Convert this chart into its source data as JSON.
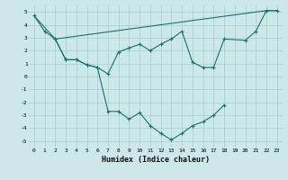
{
  "xlabel": "Humidex (Indice chaleur)",
  "bg_color": "#cce8e8",
  "grid_color": "#aacccc",
  "line_color": "#1a7070",
  "xlim": [
    -0.5,
    23.5
  ],
  "ylim": [
    -5.5,
    5.5
  ],
  "xticks": [
    0,
    1,
    2,
    3,
    4,
    5,
    6,
    7,
    8,
    9,
    10,
    11,
    12,
    13,
    14,
    15,
    16,
    17,
    18,
    19,
    20,
    21,
    22,
    23
  ],
  "yticks": [
    -5,
    -4,
    -3,
    -2,
    -1,
    0,
    1,
    2,
    3,
    4,
    5
  ],
  "line1_x": [
    0,
    1,
    2,
    3,
    4,
    5,
    6,
    7,
    8,
    9,
    10,
    11,
    12,
    13,
    14,
    15,
    16,
    17,
    18
  ],
  "line1_y": [
    4.7,
    3.5,
    2.9,
    1.3,
    1.3,
    0.9,
    0.7,
    -2.7,
    -2.7,
    -3.3,
    -2.8,
    -3.8,
    -4.4,
    -4.9,
    -4.4,
    -3.8,
    -3.5,
    -3.0,
    -2.2
  ],
  "line2_x": [
    0,
    2,
    22,
    23
  ],
  "line2_y": [
    4.7,
    2.9,
    5.1,
    5.1
  ],
  "line3_x": [
    2,
    3,
    4,
    5,
    6,
    7,
    8,
    9,
    10,
    11,
    12,
    13,
    14,
    15,
    16,
    17,
    18,
    20,
    21,
    22,
    23
  ],
  "line3_y": [
    2.9,
    1.3,
    1.3,
    0.9,
    0.7,
    0.2,
    1.9,
    2.2,
    2.5,
    2.0,
    2.5,
    2.9,
    3.5,
    1.1,
    0.7,
    0.7,
    2.9,
    2.8,
    3.5,
    5.1,
    5.1
  ]
}
